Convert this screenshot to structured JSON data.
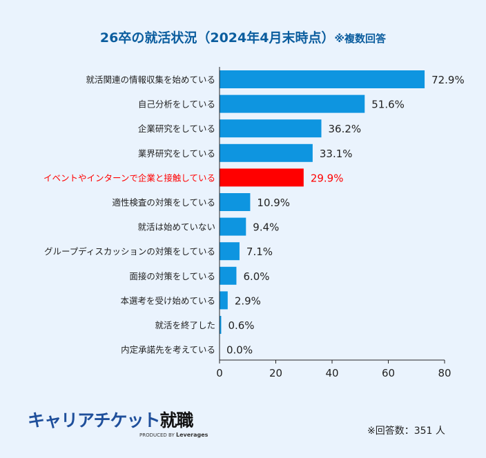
{
  "title": "26卒の就活状況（2024年4月末時点）",
  "title_note": "※複数回答",
  "footer": {
    "respondents": "※回答数：351 人",
    "logo_brand": "キャリアチケット",
    "logo_suffix": "就職",
    "logo_by": "PRODUCED BY",
    "logo_company": "Leverages"
  },
  "chart_data": {
    "type": "bar",
    "orientation": "horizontal",
    "title": "26卒の就活状況（2024年4月末時点）",
    "categories": [
      "就活関連の情報収集を始めている",
      "自己分析をしている",
      "企業研究をしている",
      "業界研究をしている",
      "イベントやインターンで企業と接触している",
      "適性検査の対策をしている",
      "就活は始めていない",
      "グループディスカッションの対策をしている",
      "面接の対策をしている",
      "本選考を受け始めている",
      "就活を終了した",
      "内定承諾先を考えている"
    ],
    "values": [
      72.9,
      51.6,
      36.2,
      33.1,
      29.9,
      10.9,
      9.4,
      7.1,
      6.0,
      2.9,
      0.6,
      0.0
    ],
    "value_labels": [
      "72.9%",
      "51.6%",
      "36.2%",
      "33.1%",
      "29.9%",
      "10.9%",
      "9.4%",
      "7.1%",
      "6.0%",
      "2.9%",
      "0.6%",
      "0.0%"
    ],
    "highlight_index": 4,
    "xlim": [
      0,
      80
    ],
    "xticks": [
      0,
      20,
      40,
      60,
      80
    ],
    "grid": false,
    "colors": {
      "bar": "#0e95e0",
      "highlight": "#ff0000",
      "text": "#222222"
    }
  }
}
